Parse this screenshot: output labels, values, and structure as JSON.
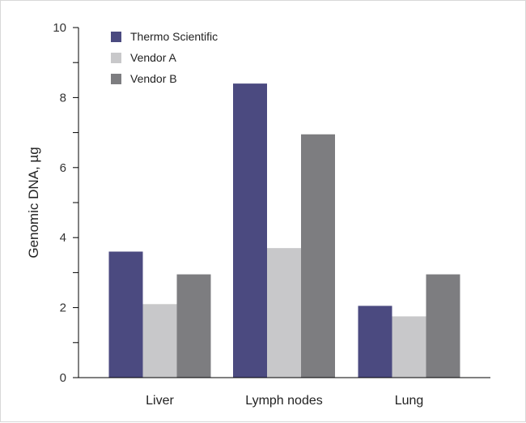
{
  "chart_data": {
    "type": "bar",
    "categories": [
      "Liver",
      "Lymph nodes",
      "Lung"
    ],
    "series": [
      {
        "name": "Thermo Scientific",
        "values": [
          3.6,
          8.4,
          2.05
        ]
      },
      {
        "name": "Vendor A",
        "values": [
          2.1,
          3.7,
          1.75
        ]
      },
      {
        "name": "Vendor B",
        "values": [
          2.95,
          6.95,
          2.95
        ]
      }
    ],
    "title": "",
    "xlabel": "",
    "ylabel": "Genomic DNA, µg",
    "ylim": [
      0,
      10
    ],
    "yticks": [
      0,
      2,
      4,
      6,
      8,
      10
    ],
    "grid": false,
    "legend_position": "top-left",
    "colors": [
      "#4b4a80",
      "#c8c8ca",
      "#7d7d80"
    ],
    "axis_color": "#000000"
  }
}
